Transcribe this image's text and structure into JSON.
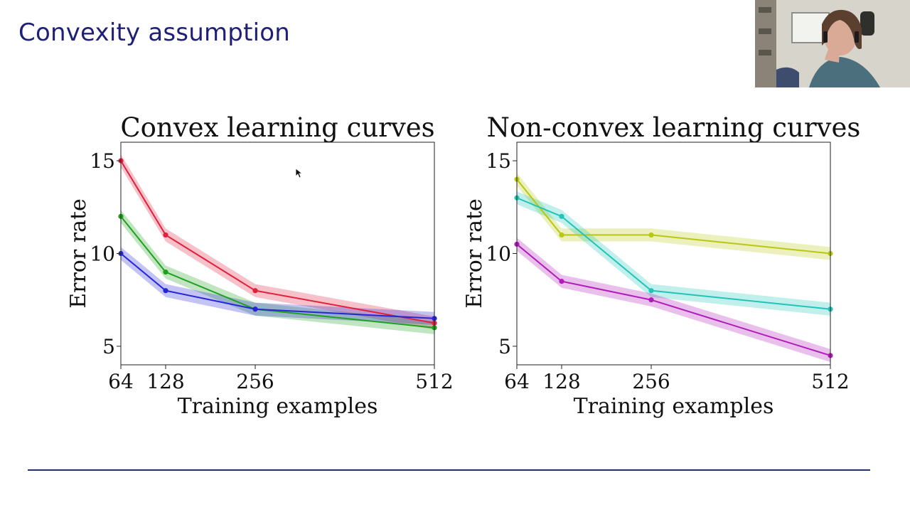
{
  "slide": {
    "title": "Convexity assumption"
  },
  "chart_data": [
    {
      "type": "line",
      "title": "Convex learning curves",
      "xlabel": "Training examples",
      "ylabel": "Error rate",
      "x": [
        64,
        128,
        256,
        512
      ],
      "xticks": [
        "64",
        "128",
        "256",
        "512"
      ],
      "yticks": [
        5,
        10,
        15
      ],
      "xlim": [
        64,
        512
      ],
      "ylim": [
        4,
        16
      ],
      "grid": false,
      "bands": true,
      "series": [
        {
          "color": "#e0203c",
          "values": [
            15,
            11,
            8,
            6.25
          ],
          "band": 0.35
        },
        {
          "color": "#1fa01f",
          "values": [
            12,
            9,
            7,
            6
          ],
          "band": 0.35
        },
        {
          "color": "#2626d8",
          "values": [
            10,
            8,
            7,
            6.5
          ],
          "band": 0.35
        }
      ]
    },
    {
      "type": "line",
      "title": "Non-convex learning curves",
      "xlabel": "Training examples",
      "ylabel": "Error rate",
      "x": [
        64,
        128,
        256,
        512
      ],
      "xticks": [
        "64",
        "128",
        "256",
        "512"
      ],
      "yticks": [
        5,
        10,
        15
      ],
      "xlim": [
        64,
        512
      ],
      "ylim": [
        4,
        16
      ],
      "grid": false,
      "bands": true,
      "series": [
        {
          "color": "#b8c812",
          "values": [
            14,
            11,
            11,
            10
          ],
          "band": 0.35
        },
        {
          "color": "#22c4b8",
          "values": [
            13,
            12,
            8,
            7
          ],
          "band": 0.35
        },
        {
          "color": "#b01cb8",
          "values": [
            10.5,
            8.5,
            7.5,
            4.5
          ],
          "band": 0.35
        }
      ]
    }
  ],
  "icons": {
    "cursor": "cursor-arrow-icon",
    "webcam": "webcam-video-icon"
  }
}
